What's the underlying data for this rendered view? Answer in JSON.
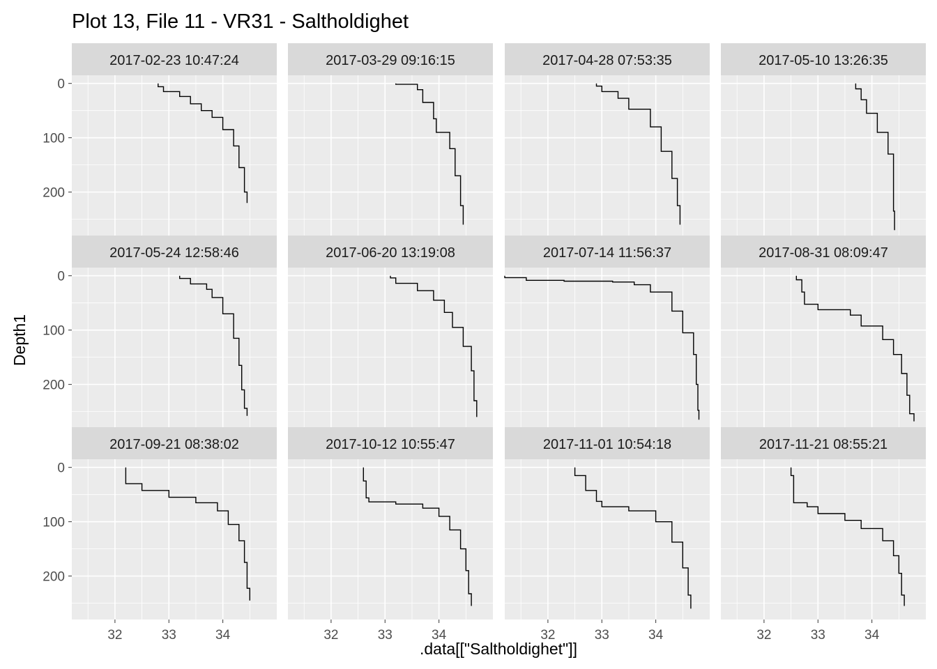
{
  "chart_data": {
    "type": "line",
    "title": "Plot 13, File 11 - VR31  -  Saltholdighet",
    "xlabel": ".data[[\"Saltholdighet\"]]",
    "ylabel": "Depth1",
    "xlim": [
      31.2,
      35.0
    ],
    "ylim": [
      280,
      -15
    ],
    "x_ticks": [
      "32",
      "33",
      "34"
    ],
    "y_ticks": [
      "0",
      "100",
      "200"
    ],
    "grid": true,
    "facets": [
      {
        "label": "2017-02-23 10:47:24",
        "points": [
          [
            32.8,
            0
          ],
          [
            32.9,
            12
          ],
          [
            33.2,
            18
          ],
          [
            33.4,
            30
          ],
          [
            33.6,
            45
          ],
          [
            33.8,
            55
          ],
          [
            34.0,
            70
          ],
          [
            34.2,
            100
          ],
          [
            34.3,
            130
          ],
          [
            34.4,
            180
          ],
          [
            34.45,
            220
          ]
        ]
      },
      {
        "label": "2017-03-29 09:16:15",
        "points": [
          [
            33.2,
            0
          ],
          [
            33.6,
            3
          ],
          [
            33.7,
            20
          ],
          [
            33.9,
            50
          ],
          [
            33.95,
            80
          ],
          [
            34.2,
            100
          ],
          [
            34.3,
            140
          ],
          [
            34.4,
            200
          ],
          [
            34.45,
            250
          ],
          [
            34.45,
            260
          ]
        ]
      },
      {
        "label": "2017-04-28 07:53:35",
        "points": [
          [
            32.9,
            0
          ],
          [
            33.0,
            10
          ],
          [
            33.3,
            20
          ],
          [
            33.5,
            35
          ],
          [
            33.9,
            60
          ],
          [
            34.1,
            100
          ],
          [
            34.3,
            150
          ],
          [
            34.4,
            200
          ],
          [
            34.45,
            250
          ],
          [
            34.45,
            260
          ]
        ]
      },
      {
        "label": "2017-05-10 13:26:35",
        "points": [
          [
            33.7,
            0
          ],
          [
            33.8,
            20
          ],
          [
            33.9,
            40
          ],
          [
            34.1,
            70
          ],
          [
            34.3,
            110
          ],
          [
            34.4,
            150
          ],
          [
            34.4,
            200
          ],
          [
            34.42,
            270
          ]
        ]
      },
      {
        "label": "2017-05-24 12:58:46",
        "points": [
          [
            33.2,
            0
          ],
          [
            33.4,
            10
          ],
          [
            33.7,
            20
          ],
          [
            33.8,
            30
          ],
          [
            34.0,
            50
          ],
          [
            34.2,
            90
          ],
          [
            34.3,
            140
          ],
          [
            34.35,
            190
          ],
          [
            34.4,
            230
          ],
          [
            34.45,
            258
          ]
        ]
      },
      {
        "label": "2017-06-20 13:19:08",
        "points": [
          [
            33.1,
            0
          ],
          [
            33.2,
            8
          ],
          [
            33.6,
            20
          ],
          [
            33.9,
            35
          ],
          [
            34.1,
            55
          ],
          [
            34.25,
            80
          ],
          [
            34.45,
            110
          ],
          [
            34.6,
            150
          ],
          [
            34.65,
            200
          ],
          [
            34.7,
            260
          ]
        ]
      },
      {
        "label": "2017-07-14 11:56:37",
        "points": [
          [
            31.2,
            0
          ],
          [
            31.6,
            7
          ],
          [
            32.3,
            10
          ],
          [
            33.2,
            10
          ],
          [
            33.6,
            13
          ],
          [
            33.9,
            20
          ],
          [
            34.3,
            40
          ],
          [
            34.5,
            90
          ],
          [
            34.7,
            120
          ],
          [
            34.75,
            170
          ],
          [
            34.78,
            230
          ],
          [
            34.8,
            265
          ]
        ]
      },
      {
        "label": "2017-08-31 08:09:47",
        "points": [
          [
            32.6,
            0
          ],
          [
            32.7,
            15
          ],
          [
            32.75,
            45
          ],
          [
            33.0,
            60
          ],
          [
            33.6,
            65
          ],
          [
            33.8,
            80
          ],
          [
            34.2,
            105
          ],
          [
            34.4,
            130
          ],
          [
            34.55,
            160
          ],
          [
            34.65,
            200
          ],
          [
            34.7,
            240
          ],
          [
            34.78,
            268
          ]
        ]
      },
      {
        "label": "2017-09-21 08:38:02",
        "points": [
          [
            32.2,
            0
          ],
          [
            32.2,
            25
          ],
          [
            32.5,
            35
          ],
          [
            33.0,
            50
          ],
          [
            33.5,
            60
          ],
          [
            33.9,
            70
          ],
          [
            34.1,
            90
          ],
          [
            34.3,
            120
          ],
          [
            34.4,
            150
          ],
          [
            34.45,
            200
          ],
          [
            34.5,
            245
          ]
        ]
      },
      {
        "label": "2017-10-12 10:55:47",
        "points": [
          [
            32.6,
            0
          ],
          [
            32.65,
            50
          ],
          [
            32.7,
            62
          ],
          [
            33.2,
            65
          ],
          [
            33.7,
            70
          ],
          [
            34.0,
            80
          ],
          [
            34.2,
            100
          ],
          [
            34.4,
            130
          ],
          [
            34.5,
            170
          ],
          [
            34.55,
            210
          ],
          [
            34.6,
            255
          ]
        ]
      },
      {
        "label": "2017-11-01 10:54:18",
        "points": [
          [
            32.5,
            0
          ],
          [
            32.7,
            30
          ],
          [
            32.9,
            55
          ],
          [
            33.0,
            70
          ],
          [
            33.5,
            75
          ],
          [
            34.0,
            85
          ],
          [
            34.3,
            115
          ],
          [
            34.5,
            160
          ],
          [
            34.6,
            210
          ],
          [
            34.65,
            260
          ]
        ]
      },
      {
        "label": "2017-11-21 08:55:21",
        "points": [
          [
            32.5,
            0
          ],
          [
            32.55,
            30
          ],
          [
            32.55,
            65
          ],
          [
            32.8,
            65
          ],
          [
            33.0,
            80
          ],
          [
            33.5,
            90
          ],
          [
            33.8,
            105
          ],
          [
            34.2,
            120
          ],
          [
            34.4,
            150
          ],
          [
            34.5,
            175
          ],
          [
            34.55,
            215
          ],
          [
            34.6,
            255
          ]
        ]
      }
    ]
  }
}
